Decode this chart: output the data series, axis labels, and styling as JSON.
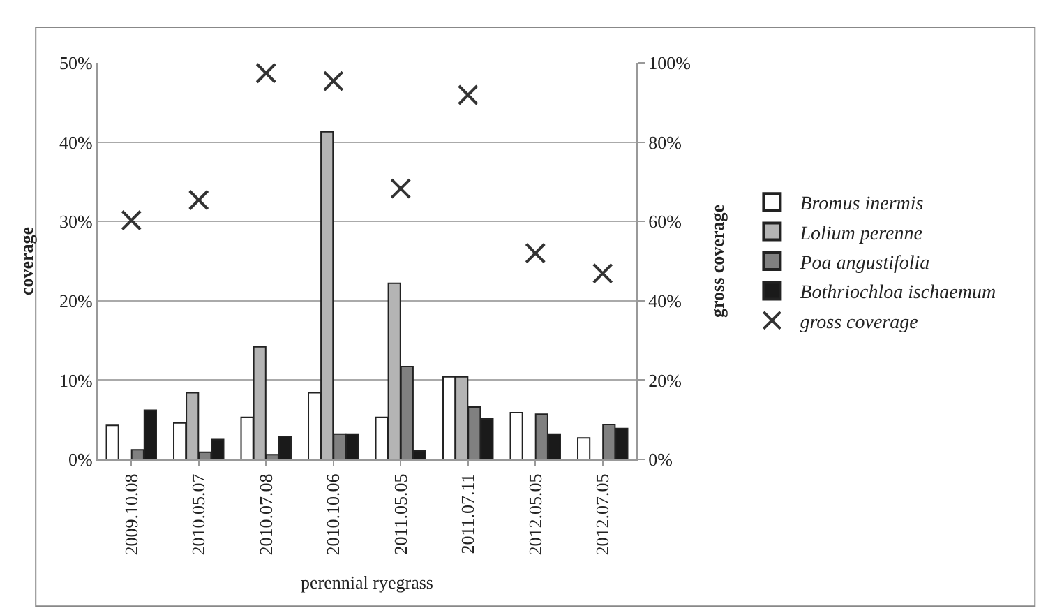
{
  "chart_data": {
    "type": "bar",
    "xlabel": "perennial ryegrass",
    "ylabel": "coverage",
    "y2label": "gross coverage",
    "categories": [
      "2009.10.08",
      "2010.05.07",
      "2010.07.08",
      "2010.10.06",
      "2011.05.05",
      "2011.07.11",
      "2012.05.05",
      "2012.07.05"
    ],
    "series": [
      {
        "name": "Bromus inermis",
        "color": "#ffffff",
        "values": [
          4.3,
          4.6,
          5.3,
          8.4,
          5.3,
          10.4,
          5.9,
          2.7
        ]
      },
      {
        "name": "Lolium perenne",
        "color": "#b4b4b4",
        "values": [
          null,
          8.4,
          14.2,
          41.3,
          22.2,
          10.4,
          null,
          null
        ]
      },
      {
        "name": "Poa angustifolia",
        "color": "#808080",
        "values": [
          1.2,
          0.9,
          0.6,
          3.2,
          11.7,
          6.6,
          5.7,
          4.4
        ]
      },
      {
        "name": "Bothriochloa ischaemum",
        "color": "#1a1a1a",
        "values": [
          6.2,
          2.5,
          2.9,
          3.2,
          1.1,
          5.1,
          3.2,
          3.9
        ]
      },
      {
        "name": "gross coverage",
        "type": "scatter",
        "axis": "y2",
        "marker": "cross",
        "color": "#333333",
        "values": [
          60.3,
          65.4,
          97.4,
          95.4,
          68.3,
          91.9,
          52,
          46.9
        ]
      }
    ],
    "ylim": [
      0,
      50
    ],
    "yticks": [
      {
        "value": 0,
        "label": "0%"
      },
      {
        "value": 10,
        "label": "10%"
      },
      {
        "value": 20,
        "label": "20%"
      },
      {
        "value": 30,
        "label": "30%"
      },
      {
        "value": 40,
        "label": "40%"
      },
      {
        "value": 50,
        "label": "50%"
      }
    ],
    "y2lim": [
      0,
      100
    ],
    "y2ticks": [
      {
        "value": 0,
        "label": "0%"
      },
      {
        "value": 20,
        "label": "20%"
      },
      {
        "value": 40,
        "label": "40%"
      },
      {
        "value": 60,
        "label": "60%"
      },
      {
        "value": 80,
        "label": "80%"
      },
      {
        "value": 100,
        "label": "100%"
      }
    ],
    "grid": "y",
    "legend": "right"
  }
}
